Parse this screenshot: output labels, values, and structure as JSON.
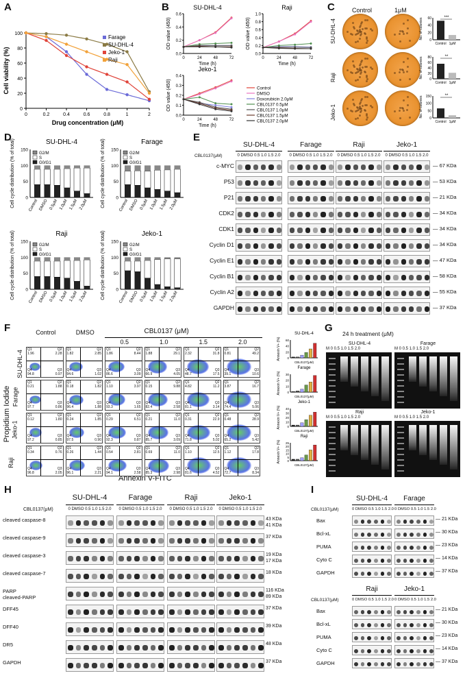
{
  "panels": {
    "A": "A",
    "B": "B",
    "C": "C",
    "D": "D",
    "E": "E",
    "F": "F",
    "G": "G",
    "H": "H",
    "I": "I"
  },
  "chart_data": [
    {
      "id": "A",
      "type": "line",
      "ylabel": "Cell viability (%)",
      "xlabel": "Drug concentration (μM)",
      "xlim": [
        0,
        2
      ],
      "ylim": [
        0,
        100
      ],
      "xticks": [
        "0",
        "0.2",
        "0.4",
        "0.6",
        "0.8",
        "1",
        "2"
      ],
      "yticks": [
        "0",
        "20",
        "40",
        "60",
        "80",
        "100"
      ],
      "x": [
        0,
        0.2,
        0.4,
        0.6,
        0.8,
        1.0,
        2.0
      ],
      "legend_position": "top-right",
      "series": [
        {
          "name": "Farage",
          "color": "#6b6bd8",
          "values": [
            100,
            95,
            75,
            45,
            25,
            18,
            10
          ]
        },
        {
          "name": "SU-DHL-4",
          "color": "#8a7a44",
          "values": [
            100,
            99,
            97,
            92,
            85,
            75,
            22
          ]
        },
        {
          "name": "Jeko-1",
          "color": "#e0443a",
          "values": [
            100,
            90,
            70,
            55,
            45,
            35,
            12
          ]
        },
        {
          "name": "Raji",
          "color": "#f2a23a",
          "values": [
            100,
            95,
            85,
            75,
            65,
            58,
            20
          ]
        }
      ]
    },
    {
      "id": "B",
      "type": "line",
      "ylabel": "OD value (450)",
      "xlabel": "Time (h)",
      "xticks": [
        "0",
        "24",
        "48",
        "72"
      ],
      "x": [
        0,
        24,
        48,
        72
      ],
      "legend": [
        "Control",
        "DMSO",
        "Doxorubicin 2.0μM",
        "CBL0137 0.5μM",
        "CBL0137 1.0μM",
        "CBL0137 1.5μM",
        "CBL0137 2.0μM"
      ],
      "legend_colors": [
        "#e0443a",
        "#e873c0",
        "#8080e0",
        "#4f8f4f",
        "#555555",
        "#6b3a2a",
        "#333333"
      ],
      "subplots": [
        {
          "title": "SU-DHL-4",
          "ylim": [
            0,
            0.6
          ],
          "yticks": [
            "0.0",
            "0.2",
            "0.4",
            "0.6"
          ],
          "series": [
            [
              0.1,
              0.2,
              0.32,
              0.54
            ],
            [
              0.1,
              0.2,
              0.31,
              0.53
            ],
            [
              0.1,
              0.12,
              0.12,
              0.12
            ],
            [
              0.1,
              0.14,
              0.15,
              0.16
            ],
            [
              0.1,
              0.12,
              0.12,
              0.12
            ],
            [
              0.1,
              0.11,
              0.1,
              0.1
            ],
            [
              0.1,
              0.1,
              0.1,
              0.09
            ]
          ]
        },
        {
          "title": "Raji",
          "ylim": [
            0,
            1.0
          ],
          "yticks": [
            "0.0",
            "0.2",
            "0.4",
            "0.6",
            "0.8",
            "1.0"
          ],
          "series": [
            [
              0.15,
              0.3,
              0.5,
              0.82
            ],
            [
              0.15,
              0.3,
              0.48,
              0.8
            ],
            [
              0.15,
              0.17,
              0.17,
              0.16
            ],
            [
              0.15,
              0.2,
              0.22,
              0.25
            ],
            [
              0.15,
              0.16,
              0.16,
              0.15
            ],
            [
              0.15,
              0.14,
              0.13,
              0.12
            ],
            [
              0.15,
              0.13,
              0.12,
              0.12
            ]
          ]
        },
        {
          "title": "Jeko-1",
          "ylim": [
            0,
            0.4
          ],
          "yticks": [
            "0.0",
            "0.1",
            "0.2",
            "0.3",
            "0.4"
          ],
          "series": [
            [
              0.16,
              0.22,
              0.28,
              0.35
            ],
            [
              0.16,
              0.21,
              0.27,
              0.34
            ],
            [
              0.16,
              0.12,
              0.1,
              0.08
            ],
            [
              0.16,
              0.18,
              0.12,
              0.11
            ],
            [
              0.16,
              0.13,
              0.08,
              0.06
            ],
            [
              0.16,
              0.12,
              0.07,
              0.05
            ],
            [
              0.16,
              0.11,
              0.06,
              0.04
            ]
          ]
        }
      ]
    },
    {
      "id": "C",
      "type": "bar",
      "columns": [
        "Control",
        "1μM"
      ],
      "ylabel": "No. of colonies",
      "categories": [
        "Control",
        "1μM"
      ],
      "subplots": [
        {
          "row": "SU-DHL-4",
          "values": [
            52,
            13
          ],
          "yticks": [
            "0",
            "20",
            "40",
            "60"
          ],
          "ylim": [
            0,
            60
          ],
          "sig": "***"
        },
        {
          "row": "Raji",
          "values": [
            55,
            22
          ],
          "yticks": [
            "0",
            "20",
            "40",
            "60",
            "80"
          ],
          "ylim": [
            0,
            80
          ],
          "sig": "**"
        },
        {
          "row": "Jeko-1",
          "values": [
            65,
            18
          ],
          "yticks": [
            "0",
            "50",
            "100",
            "150"
          ],
          "ylim": [
            0,
            150
          ],
          "sig": "**"
        }
      ]
    },
    {
      "id": "D",
      "type": "bar",
      "stacked": true,
      "ylabel": "Cell cycle distribution (% of total)",
      "categories": [
        "Control",
        "DMSO",
        "0.5μM",
        "1.0μM",
        "1.5μM",
        "2.0μM"
      ],
      "yticks": [
        "0",
        "50",
        "100",
        "150"
      ],
      "ylim": [
        0,
        150
      ],
      "legend": [
        "G2/M",
        "S",
        "G0/G1"
      ],
      "subplots": [
        {
          "title": "SU-DHL-4",
          "G0G1": [
            40,
            40,
            38,
            30,
            20,
            12
          ],
          "S": [
            48,
            48,
            50,
            60,
            72,
            80
          ],
          "G2M": [
            12,
            12,
            12,
            10,
            8,
            8
          ]
        },
        {
          "title": "Farage",
          "G0G1": [
            40,
            38,
            30,
            25,
            20,
            15
          ],
          "S": [
            42,
            45,
            52,
            60,
            66,
            73
          ],
          "G2M": [
            18,
            17,
            18,
            15,
            14,
            12
          ]
        },
        {
          "title": "Raji",
          "G0G1": [
            40,
            40,
            38,
            35,
            25,
            10
          ],
          "S": [
            48,
            48,
            50,
            55,
            65,
            82
          ],
          "G2M": [
            12,
            12,
            12,
            10,
            10,
            8
          ]
        },
        {
          "title": "Jeko-1",
          "G0G1": [
            58,
            55,
            35,
            15,
            8,
            5
          ],
          "S": [
            30,
            33,
            55,
            78,
            87,
            90
          ],
          "G2M": [
            12,
            12,
            10,
            7,
            5,
            5
          ]
        }
      ]
    },
    {
      "id": "F",
      "type": "bar",
      "ylabel": "Annexin V+ (%)",
      "categories": [
        "Control",
        "DMSO",
        "0.5",
        "1.0",
        "1.5",
        "2.0"
      ],
      "xlabel": "CBL0137(μM)",
      "subplots": [
        {
          "title": "SU-DHL-4",
          "values": [
            3,
            3,
            9,
            18,
            30,
            49
          ],
          "yticks": [
            "0",
            "20",
            "40",
            "60"
          ],
          "ylim": [
            0,
            60
          ]
        },
        {
          "title": "Farage",
          "values": [
            1,
            2,
            5,
            12,
            17,
            28
          ],
          "yticks": [
            "0",
            "10",
            "20",
            "30"
          ],
          "ylim": [
            0,
            30
          ]
        },
        {
          "title": "Jeko-1",
          "values": [
            3,
            3,
            8,
            15,
            25,
            32
          ],
          "yticks": [
            "0",
            "10",
            "20",
            "30",
            "40"
          ],
          "ylim": [
            0,
            40
          ]
        },
        {
          "title": "Raji",
          "values": [
            2,
            2,
            4,
            8,
            15,
            22
          ],
          "yticks": [
            "0",
            "5",
            "10",
            "15",
            "20",
            "25"
          ],
          "ylim": [
            0,
            25
          ]
        }
      ]
    }
  ],
  "panelC": {
    "col1": "Control",
    "col2": "1μM",
    "rows": [
      "SU-DHL-4",
      "Raji",
      "Jeko-1"
    ]
  },
  "panelE": {
    "treat": "CBL0137(μM)",
    "lanes": "0 DMSO 0.5 1.0 1.5 2.0",
    "cells": [
      "SU-DHL-4",
      "Farage",
      "Raji",
      "Jeko-1"
    ],
    "rows": [
      {
        "p": "c-MYC",
        "kda": "67 KDa"
      },
      {
        "p": "P53",
        "kda": "53 KDa"
      },
      {
        "p": "P21",
        "kda": "21 KDa"
      },
      {
        "p": "CDK2",
        "kda": "34 KDa"
      },
      {
        "p": "CDK1",
        "kda": "34 KDa"
      },
      {
        "p": "Cyclin D1",
        "kda": "34 KDa"
      },
      {
        "p": "Cyclin E1",
        "kda": "47 KDa"
      },
      {
        "p": "Cyclin B1",
        "kda": "58 KDa"
      },
      {
        "p": "Cyclin A2",
        "kda": "55 KDa"
      },
      {
        "p": "GAPDH",
        "kda": "37 KDa"
      }
    ]
  },
  "panelF": {
    "pi": "Propidium Iodide",
    "annexin": "Annexin V-FITC",
    "cbl": "CBL0137 (μM)",
    "cols": [
      "Control",
      "DMSO",
      "0.5",
      "1.0",
      "1.5",
      "2.0"
    ],
    "rows": [
      "SU-DHL-4",
      "Farage",
      "Jeko-1",
      "Raji"
    ],
    "q": [
      [
        [
          "1.96",
          "2.28",
          "94.8",
          "0.97"
        ],
        [
          "1.82",
          "2.85",
          "94.6",
          "1.02"
        ],
        [
          "1.86",
          "8.44",
          "86.6",
          "3.09"
        ],
        [
          "1.88",
          "29.1",
          "66.9",
          "4.05"
        ],
        [
          "2.32",
          "31.8",
          "48.7",
          "17.5"
        ],
        [
          "0.81",
          "49.2",
          "39.1",
          "10.6"
        ]
      ],
      [
        [
          "0.21",
          "1.88",
          "97.7",
          "0.86"
        ],
        [
          "0.18",
          "1.82",
          "96.4",
          "1.88"
        ],
        [
          "1.10",
          "3.97",
          "93.3",
          "1.65"
        ],
        [
          "0.15",
          "9.88",
          "82.4",
          "2.58"
        ],
        [
          "4.82",
          "11.2",
          "81.1",
          "3.14"
        ],
        [
          "3.87",
          "16.7",
          "74.4",
          "5.06"
        ]
      ],
      [
        [
          "0.12",
          "1.80",
          "97.2",
          "0.85"
        ],
        [
          "0.24",
          "1.85",
          "97.5",
          "0.90"
        ],
        [
          "0.29",
          "6.51",
          "92.3",
          "0.87"
        ],
        [
          "0.21",
          "11.0",
          "85.7",
          "3.09"
        ],
        [
          "0.31",
          "22.9",
          "71.8",
          "5.02"
        ],
        [
          "0.48",
          "28.9",
          "65.2",
          "5.42"
        ]
      ],
      [
        [
          "0.34",
          "0.76",
          "96.8",
          "2.05"
        ],
        [
          "0.26",
          "1.44",
          "96.1",
          "2.21"
        ],
        [
          "0.54",
          "2.81",
          "94.1",
          "2.58"
        ],
        [
          "0.69",
          "11.0",
          "85.3",
          "2.98"
        ],
        [
          "1.10",
          "12.5",
          "81.6",
          "4.52"
        ],
        [
          "1.12",
          "17.8",
          "72.7",
          "8.34"
        ]
      ]
    ]
  },
  "panelG": {
    "title": "24 h treatment (μM)",
    "gels": [
      "SU-DHL-4",
      "Farage",
      "Raji",
      "Jeko-1"
    ],
    "lanes": [
      "M",
      "0",
      "0.5",
      "1.0",
      "1.5",
      "2.0"
    ]
  },
  "panelH": {
    "treat": "CBL0137(μM)",
    "lanes": "0 DMSO 0.5 1.0 1.5 2.0",
    "cells": [
      "SU-DHL-4",
      "Farage",
      "Raji",
      "Jeko-1"
    ],
    "rows": [
      {
        "p": "cleaved caspase-8",
        "kda": "43 KDa\n41 KDa"
      },
      {
        "p": "cleaved caspase-9",
        "kda": "37 KDa"
      },
      {
        "p": "cleaved caspase-3",
        "kda": "19 KDa\n17 KDa"
      },
      {
        "p": "cleaved caspase-7",
        "kda": "18 KDa"
      },
      {
        "p": "PARP\ncleaved-PARP",
        "kda": "116 KDa\n89 KDa"
      },
      {
        "p": "DFF45",
        "kda": "37 KDa"
      },
      {
        "p": "DFF40",
        "kda": "39 KDa"
      },
      {
        "p": "DR5",
        "kda": "48 KDa"
      },
      {
        "p": "GAPDH",
        "kda": "37 KDa"
      }
    ]
  },
  "panelI": {
    "treat": "CBL0137(μM)",
    "lanes": "0 DMSO 0.5 1.0 1.5 2.0",
    "top": [
      "SU-DHL-4",
      "Farage"
    ],
    "bottom": [
      "Raji",
      "Jeko-1"
    ],
    "rows": [
      {
        "p": "Bax",
        "kda": "21 KDa"
      },
      {
        "p": "Bcl-xL",
        "kda": "30 KDa"
      },
      {
        "p": "PUMA",
        "kda": "23 KDa"
      },
      {
        "p": "Cyto C",
        "kda": "14 KDa"
      },
      {
        "p": "GAPDH",
        "kda": "37 KDa"
      }
    ]
  }
}
